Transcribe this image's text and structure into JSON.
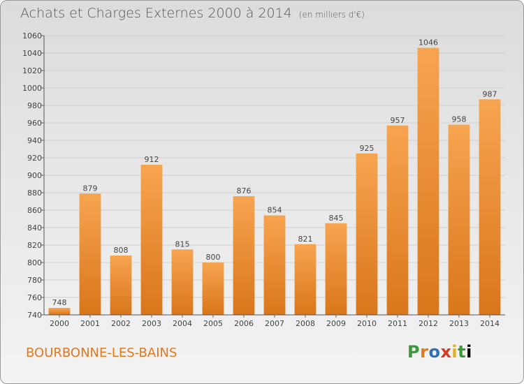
{
  "title": "Achats et Charges Externes 2000 à 2014",
  "unit_note": "(en milliers d'€)",
  "commune": "BOURBONNE-LES-BAINS",
  "logo_letters": [
    "P",
    "r",
    "o",
    "x",
    "i",
    "t",
    "i"
  ],
  "colors": {
    "bar_top": "#f7a450",
    "bar_bottom": "#d9761b",
    "grid": "#cfcfcf",
    "title": "#555555",
    "commune": "#e0781e"
  },
  "chart_data": {
    "type": "bar",
    "title": "Achats et Charges Externes 2000 à 2014",
    "subtitle": "(en milliers d'€)",
    "categories": [
      "2000",
      "2001",
      "2002",
      "2003",
      "2004",
      "2005",
      "2006",
      "2007",
      "2008",
      "2009",
      "2010",
      "2011",
      "2012",
      "2013",
      "2014"
    ],
    "values": [
      748,
      879,
      808,
      912,
      815,
      800,
      876,
      854,
      821,
      845,
      925,
      957,
      1046,
      958,
      987
    ],
    "ylim": [
      740,
      1060
    ],
    "yticks": [
      740,
      760,
      780,
      800,
      820,
      840,
      860,
      880,
      900,
      920,
      940,
      960,
      980,
      1000,
      1020,
      1040,
      1060
    ],
    "grid": true,
    "xlabel": "",
    "ylabel": ""
  }
}
